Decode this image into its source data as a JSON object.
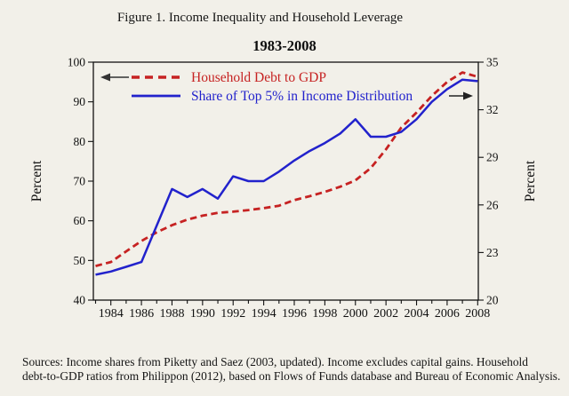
{
  "figure": {
    "caption": "Figure 1. Income Inequality and Household Leverage",
    "source_line1": "Sources: Income shares from Piketty and Saez (2003, updated). Income excludes capital gains. Household",
    "source_line2": "debt-to-GDP ratios from Philippon (2012), based on Flows of Funds database and Bureau of Economic Analysis."
  },
  "chart_data": {
    "type": "line",
    "title": "1983-2008",
    "x": [
      1983,
      1984,
      1985,
      1986,
      1987,
      1988,
      1989,
      1990,
      1991,
      1992,
      1993,
      1994,
      1995,
      1996,
      1997,
      1998,
      1999,
      2000,
      2001,
      2002,
      2003,
      2004,
      2005,
      2006,
      2007,
      2008
    ],
    "x_tick_labels": [
      "1984",
      "1986",
      "1988",
      "1990",
      "1992",
      "1994",
      "1996",
      "1998",
      "2000",
      "2002",
      "2004",
      "2006",
      "2008"
    ],
    "y_left": {
      "label": "Percent",
      "min": 40,
      "max": 100,
      "ticks": [
        40,
        50,
        60,
        70,
        80,
        90,
        100
      ]
    },
    "y_right": {
      "label": "Percent",
      "min": 20,
      "max": 35,
      "ticks": [
        20,
        23,
        26,
        29,
        32,
        35
      ]
    },
    "grid": false,
    "legend_position": "top-left-inside",
    "annotations": {
      "left_arrow": "dashed series reads on left axis",
      "right_arrow": "solid series reads on right axis"
    },
    "series": [
      {
        "name": "Household Debt to GDP",
        "axis": "left",
        "style": "dashed",
        "color": "#c62222",
        "values": [
          48.6,
          49.6,
          52.3,
          54.9,
          57.1,
          58.9,
          60.3,
          61.3,
          62.0,
          62.3,
          62.7,
          63.2,
          63.8,
          65.2,
          66.2,
          67.3,
          68.6,
          70.2,
          73.3,
          78.0,
          83.5,
          87.3,
          91.5,
          95.0,
          97.4,
          96.3
        ]
      },
      {
        "name": "Share of Top 5% in Income Distribution",
        "axis": "right",
        "style": "solid",
        "color": "#2222cc",
        "values": [
          21.6,
          21.8,
          22.1,
          22.4,
          24.7,
          27.0,
          26.5,
          27.0,
          26.4,
          27.8,
          27.5,
          27.5,
          28.1,
          28.8,
          29.4,
          29.9,
          30.5,
          31.4,
          30.3,
          30.3,
          30.6,
          31.4,
          32.5,
          33.3,
          33.9,
          33.8
        ]
      }
    ]
  },
  "colors": {
    "background": "#f2f0e9",
    "frame": "#111111",
    "debt_red": "#c62222",
    "income_blue": "#2222cc",
    "arrow": "#333333"
  }
}
